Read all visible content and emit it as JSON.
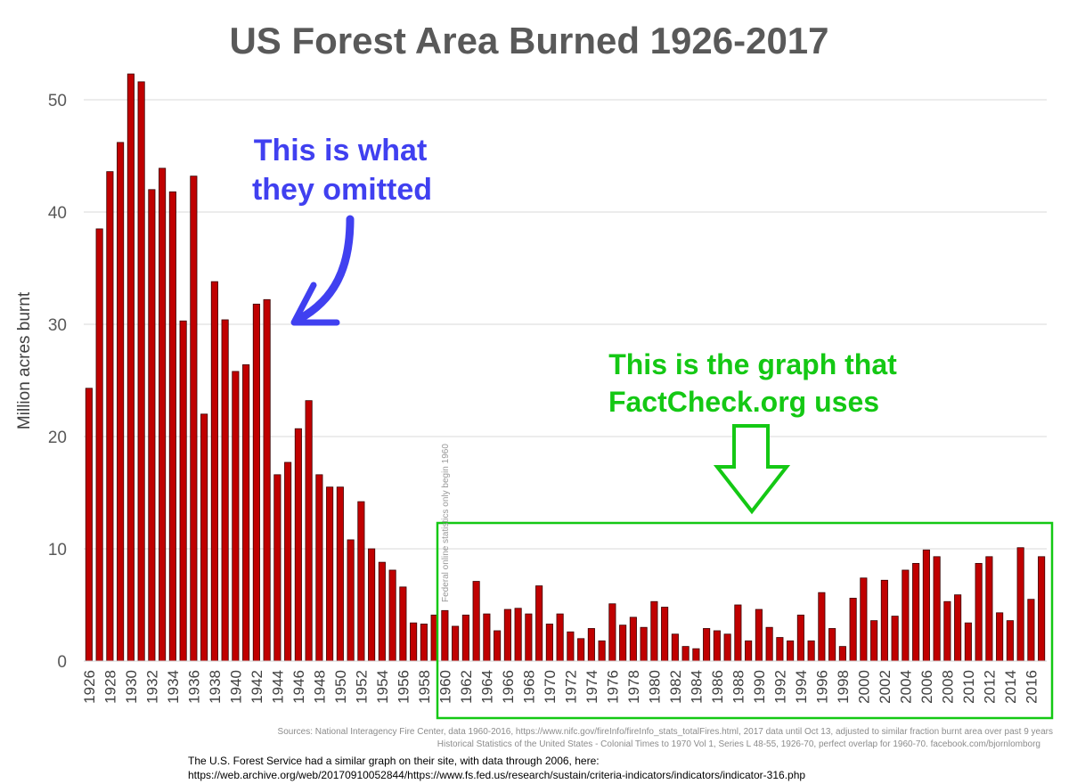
{
  "chart_data": {
    "type": "bar",
    "title": "US Forest Area Burned 1926-2017",
    "ylabel": "Million acres burnt",
    "xlabel": "",
    "ylim": [
      0,
      55
    ],
    "yticks": [
      0,
      10,
      20,
      30,
      40,
      50
    ],
    "grid": true,
    "bar_color": "#c00000",
    "x": [
      1926,
      1927,
      1928,
      1929,
      1930,
      1931,
      1932,
      1933,
      1934,
      1935,
      1936,
      1937,
      1938,
      1939,
      1940,
      1941,
      1942,
      1943,
      1944,
      1945,
      1946,
      1947,
      1948,
      1949,
      1950,
      1951,
      1952,
      1953,
      1954,
      1955,
      1956,
      1957,
      1958,
      1959,
      1960,
      1961,
      1962,
      1963,
      1964,
      1965,
      1966,
      1967,
      1968,
      1969,
      1970,
      1971,
      1972,
      1973,
      1974,
      1975,
      1976,
      1977,
      1978,
      1979,
      1980,
      1981,
      1982,
      1983,
      1984,
      1985,
      1986,
      1987,
      1988,
      1989,
      1990,
      1991,
      1992,
      1993,
      1994,
      1995,
      1996,
      1997,
      1998,
      1999,
      2000,
      2001,
      2002,
      2003,
      2004,
      2005,
      2006,
      2007,
      2008,
      2009,
      2010,
      2011,
      2012,
      2013,
      2014,
      2015,
      2016,
      2017
    ],
    "xtick_labels": [
      "1926",
      "1928",
      "1930",
      "1932",
      "1934",
      "1936",
      "1938",
      "1940",
      "1942",
      "1944",
      "1946",
      "1948",
      "1950",
      "1952",
      "1954",
      "1956",
      "1958",
      "1960",
      "1962",
      "1964",
      "1966",
      "1968",
      "1970",
      "1972",
      "1974",
      "1976",
      "1978",
      "1980",
      "1982",
      "1984",
      "1986",
      "1988",
      "1990",
      "1992",
      "1994",
      "1996",
      "1998",
      "2000",
      "2002",
      "2004",
      "2006",
      "2008",
      "2010",
      "2012",
      "2014",
      "2016"
    ],
    "values": [
      24.3,
      38.5,
      43.6,
      46.2,
      52.3,
      51.6,
      42.0,
      43.9,
      41.8,
      30.3,
      43.2,
      22.0,
      33.8,
      30.4,
      25.8,
      26.4,
      31.8,
      32.2,
      16.6,
      17.7,
      20.7,
      23.2,
      16.6,
      15.5,
      15.5,
      10.8,
      14.2,
      10.0,
      8.8,
      8.1,
      6.6,
      3.4,
      3.3,
      4.1,
      4.5,
      3.1,
      4.1,
      7.1,
      4.2,
      2.7,
      4.6,
      4.7,
      4.2,
      6.7,
      3.3,
      4.2,
      2.6,
      2.0,
      2.9,
      1.8,
      5.1,
      3.2,
      3.9,
      3.0,
      5.3,
      4.8,
      2.4,
      1.3,
      1.1,
      2.9,
      2.7,
      2.4,
      5.0,
      1.8,
      4.6,
      3.0,
      2.1,
      1.8,
      4.1,
      1.8,
      6.1,
      2.9,
      1.3,
      5.6,
      7.4,
      3.6,
      7.2,
      4.0,
      8.1,
      8.7,
      9.9,
      9.3,
      5.3,
      5.9,
      3.4,
      8.7,
      9.3,
      4.3,
      3.6,
      10.1,
      5.5,
      9.3
    ]
  },
  "annotations": {
    "omitted_line1": "This is what",
    "omitted_line2": "they omitted",
    "factcheck_line1": "This is the graph that",
    "factcheck_line2": "FactCheck.org uses",
    "federal_note": "Federal online statistics only begin 1960",
    "blue_color": "#4040f0",
    "green_color": "#14c814"
  },
  "sources": {
    "line1": "Sources: National Interagency Fire Center, data 1960-2016, https://www.nifc.gov/fireInfo/fireInfo_stats_totalFires.html, 2017 data until Oct 13, adjusted to similar fraction burnt area over past 9 years",
    "line2": "Historical Statistics of the United States - Colonial Times to 1970 Vol 1, Series L 48-55, 1926-70, perfect overlap for 1960-70. facebook.com/bjornlomborg"
  },
  "footnote": {
    "line1": "The U.S. Forest Service had a similar graph on their site, with data through 2006, here:",
    "line2": "https://web.archive.org/web/20170910052844/https://www.fs.fed.us/research/sustain/criteria-indicators/indicators/indicator-316.php"
  }
}
